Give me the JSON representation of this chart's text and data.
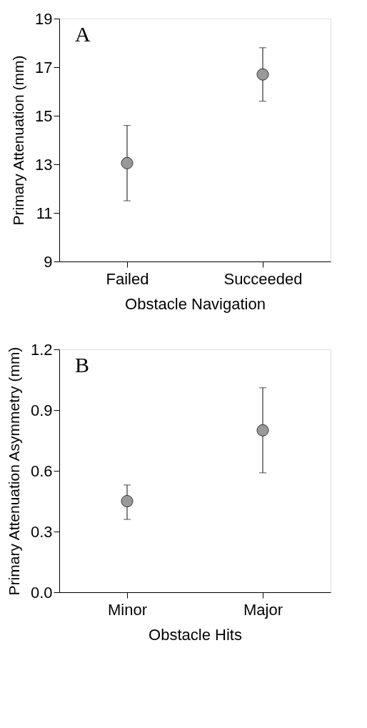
{
  "chart_data": [
    {
      "type": "scatter",
      "categories": [
        "Failed",
        "Succeeded"
      ],
      "xlabel": "Obstacle Navigation",
      "ylabel": "Primary Attenuation (mm)",
      "ylim": [
        9,
        19
      ],
      "yticks": [
        9,
        11,
        13,
        15,
        17,
        19
      ],
      "marker": "circle",
      "grid": false,
      "annotations": [
        "A"
      ],
      "series": [
        {
          "color": "#999999",
          "values": [
            13.05,
            16.7
          ],
          "errors": [
            [
              11.5,
              14.6
            ],
            [
              15.6,
              17.8
            ]
          ]
        }
      ]
    },
    {
      "type": "scatter",
      "categories": [
        "Minor",
        "Major"
      ],
      "xlabel": "Obstacle Hits",
      "ylabel": "Primary Attenuation Asymmetry (mm)",
      "ylim": [
        0,
        1.2
      ],
      "yticks": [
        {
          "value": 0,
          "label": "0.0"
        },
        0.3,
        0.6,
        0.9,
        1.2
      ],
      "marker": "circle",
      "grid": false,
      "annotations": [
        "B"
      ],
      "series": [
        {
          "color": "#999999",
          "values": [
            0.45,
            0.8
          ],
          "errors": [
            [
              0.36,
              0.53
            ],
            [
              0.59,
              1.01
            ]
          ]
        }
      ]
    }
  ]
}
